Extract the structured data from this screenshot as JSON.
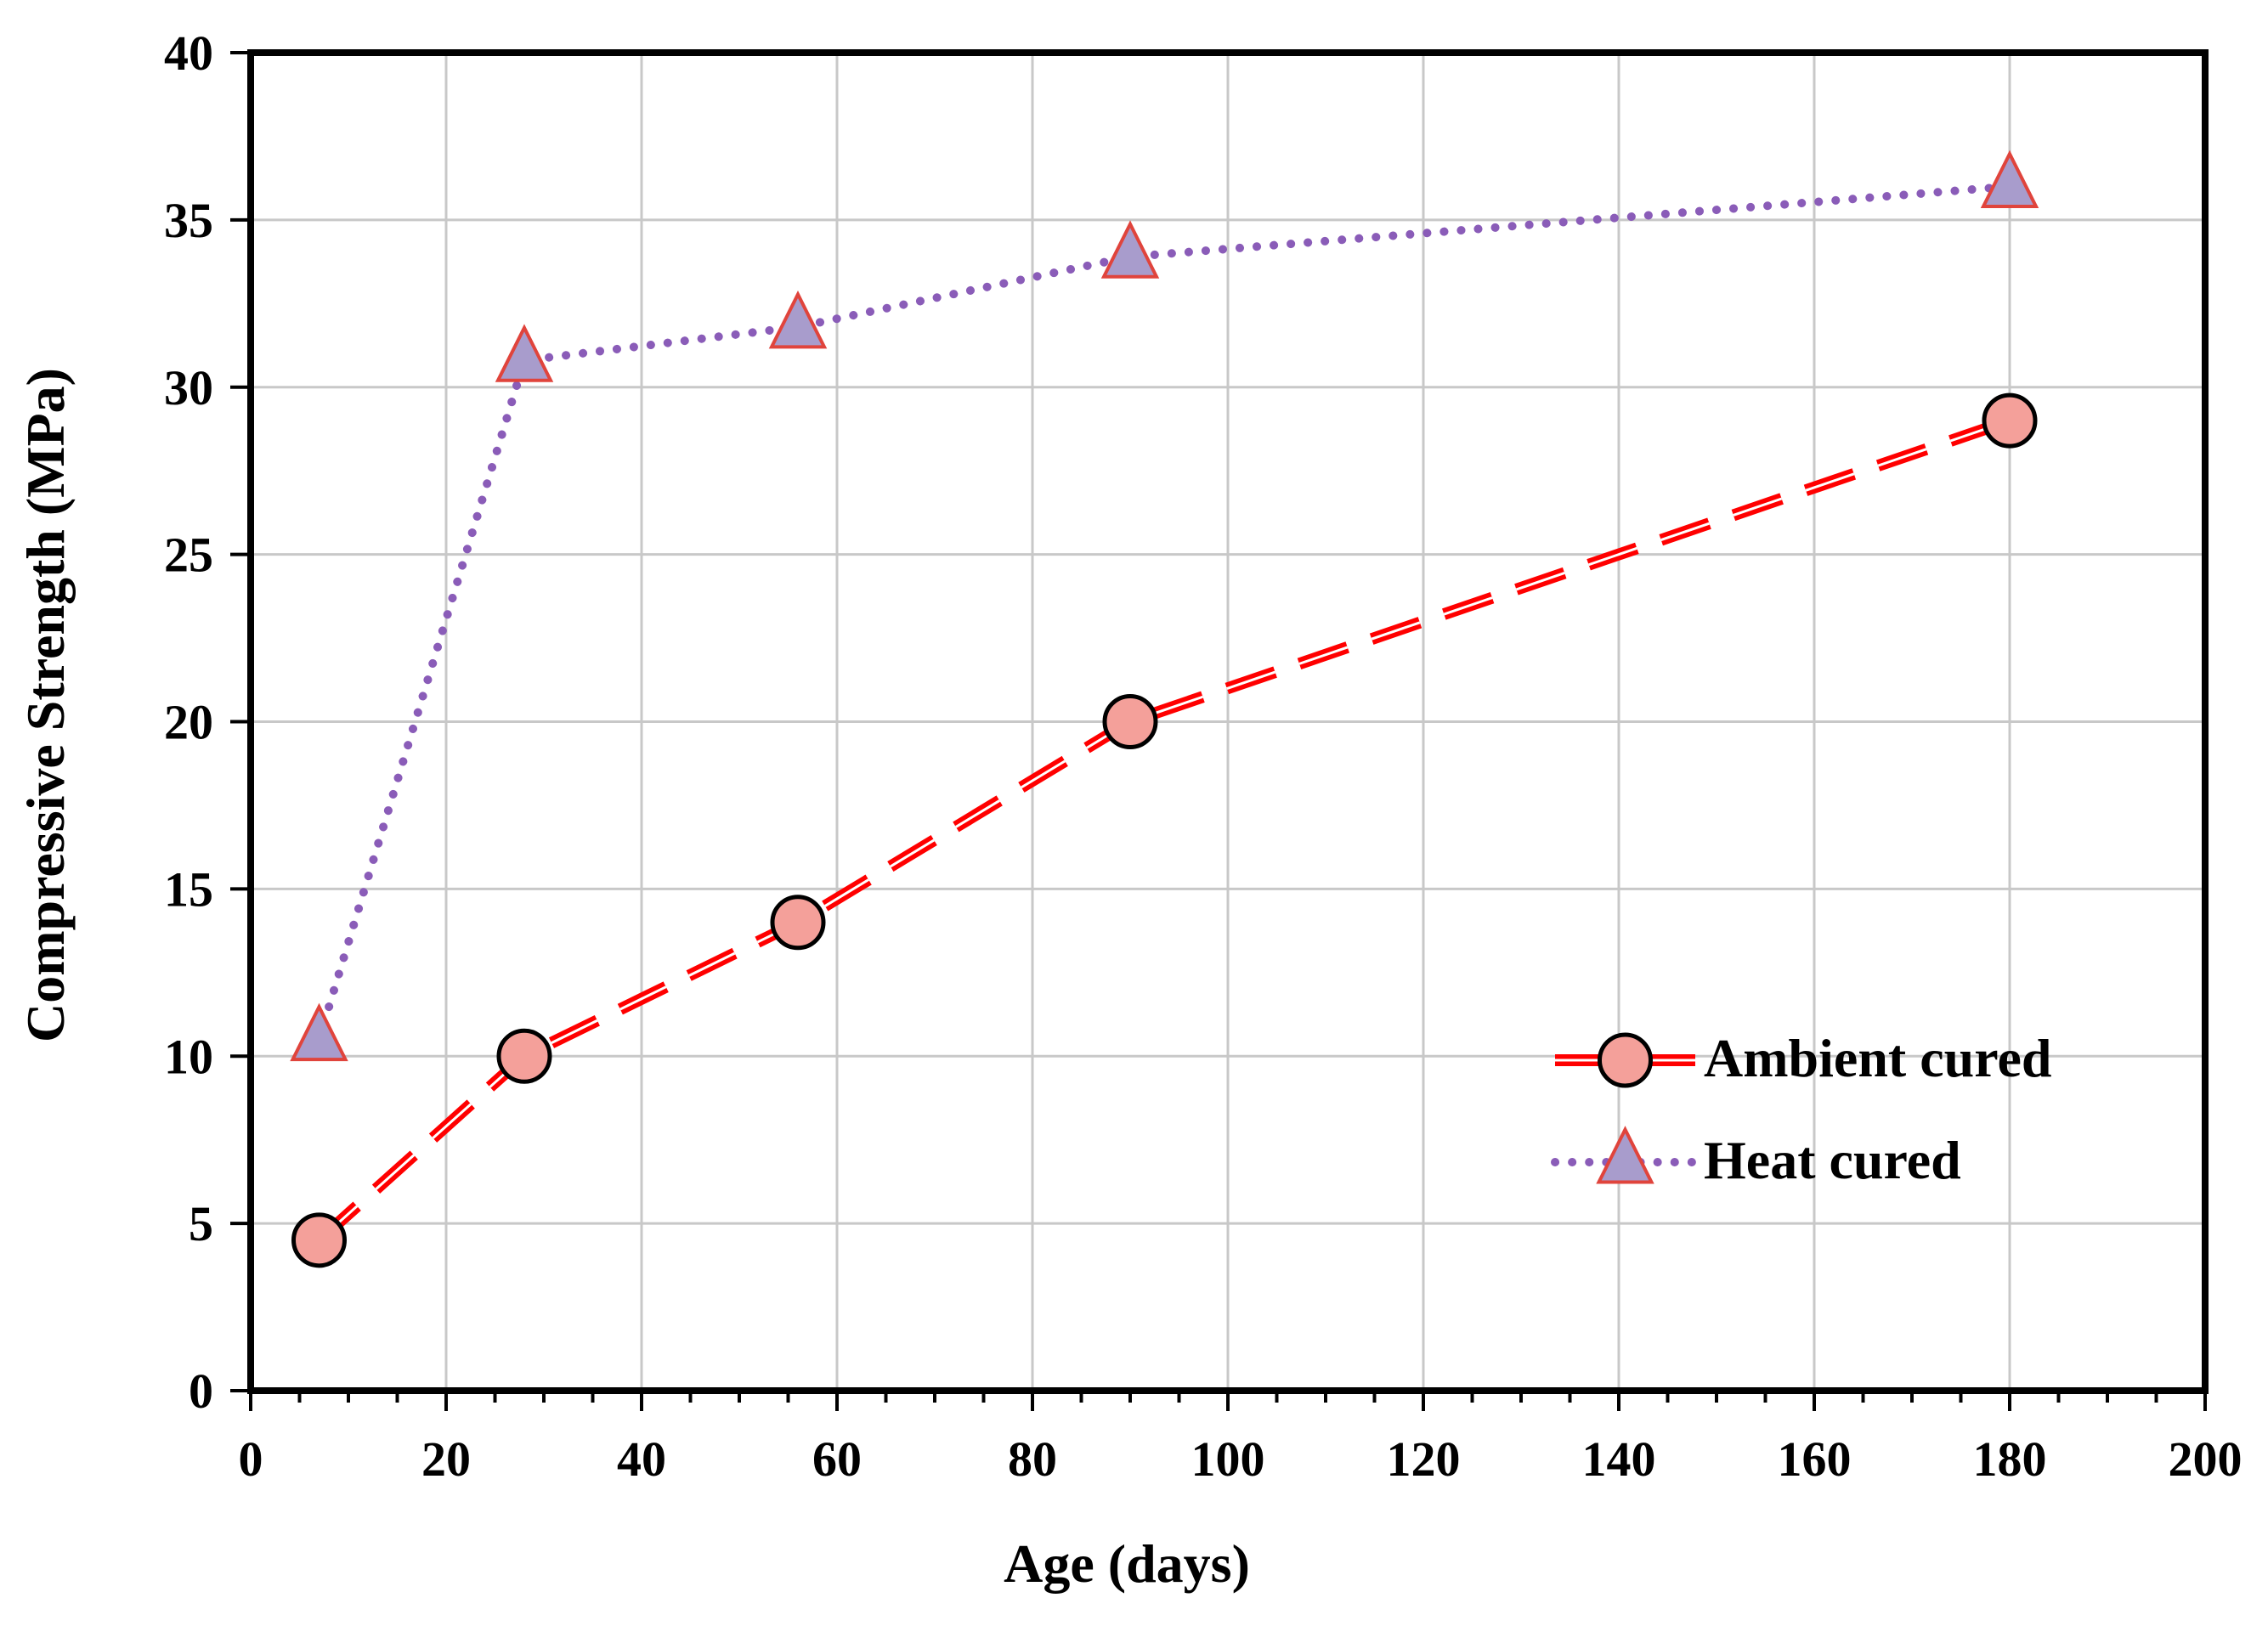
{
  "chart_data": {
    "type": "line",
    "title": "",
    "xlabel": "Age (days)",
    "ylabel": "Compressive Strength  (MPa)",
    "xlim": [
      0,
      200
    ],
    "ylim": [
      0,
      40
    ],
    "xticks": [
      0,
      20,
      40,
      60,
      80,
      100,
      120,
      140,
      160,
      180,
      200
    ],
    "yticks": [
      0,
      5,
      10,
      15,
      20,
      25,
      30,
      35,
      40
    ],
    "xtick_labels": [
      "0",
      "20",
      "40",
      "60",
      "80",
      "100",
      "120",
      "140",
      "160",
      "180",
      "200"
    ],
    "ytick_labels": [
      "0",
      "5",
      "10",
      "15",
      "20",
      "25",
      "30",
      "35",
      "40"
    ],
    "grid": true,
    "legend_position": "bottom-right",
    "series": [
      {
        "name": "Ambient cured",
        "x": [
          7,
          28,
          56,
          90,
          180
        ],
        "values": [
          4.5,
          10,
          14,
          20,
          29
        ],
        "line_style": "dashed",
        "line_color": "#ff0000",
        "marker": "circle",
        "marker_fill": "#f4a09a",
        "marker_edge": "#000000"
      },
      {
        "name": "Heat cured",
        "x": [
          7,
          28,
          56,
          90,
          180
        ],
        "values": [
          10.5,
          30.8,
          31.8,
          33.9,
          36
        ],
        "line_style": "dotted",
        "line_color": "#8a5cb8",
        "marker": "triangle",
        "marker_fill": "#a89ccc",
        "marker_edge": "#e0443c"
      }
    ]
  }
}
